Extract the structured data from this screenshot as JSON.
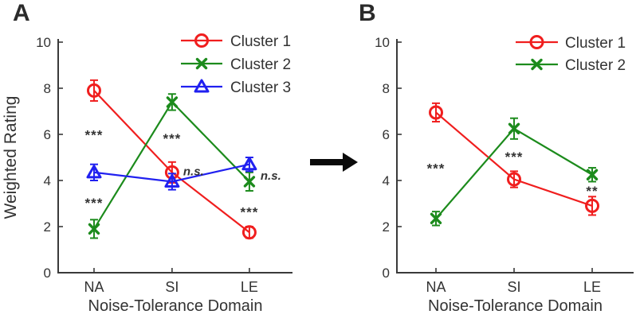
{
  "figure_labels": {
    "panel_a": "A",
    "panel_b": "B"
  },
  "colors": {
    "cluster1": "#f01e1e",
    "cluster2": "#1c8b1c",
    "cluster3": "#2020f0",
    "axis": "#3a3a3a",
    "annotation": "#404040",
    "arrow": "#0a0a0a"
  },
  "chart_data": [
    {
      "type": "line",
      "panel": "A",
      "title": "",
      "xlabel": "Noise-Tolerance Domain",
      "ylabel": "Weighted Rating",
      "categories": [
        "NA",
        "SI",
        "LE"
      ],
      "ylim": [
        0,
        10
      ],
      "yticks": [
        0,
        2,
        4,
        6,
        8,
        10
      ],
      "grid": false,
      "legend_position": "top-right",
      "series": [
        {
          "name": "Cluster 1",
          "color": "#f01e1e",
          "marker": "circle",
          "values": [
            7.9,
            4.35,
            1.75
          ],
          "errors": [
            0.45,
            0.45,
            0.25
          ]
        },
        {
          "name": "Cluster 2",
          "color": "#1c8b1c",
          "marker": "x",
          "values": [
            1.9,
            7.4,
            3.95
          ],
          "errors": [
            0.4,
            0.35,
            0.4
          ]
        },
        {
          "name": "Cluster 3",
          "color": "#2020f0",
          "marker": "triangle",
          "values": [
            4.35,
            3.95,
            4.7
          ],
          "errors": [
            0.35,
            0.35,
            0.3
          ]
        }
      ],
      "annotations": [
        {
          "text": "***",
          "cat": 0,
          "y": 6.05,
          "dx": 0,
          "style": "stars"
        },
        {
          "text": "***",
          "cat": 0,
          "y": 3.1,
          "dx": 0,
          "style": "stars"
        },
        {
          "text": "***",
          "cat": 1,
          "y": 5.9,
          "dx": 0,
          "style": "stars"
        },
        {
          "text": "n.s.",
          "cat": 1,
          "y": 4.4,
          "dx": 14,
          "style": "ns"
        },
        {
          "text": "n.s.",
          "cat": 2,
          "y": 4.2,
          "dx": 14,
          "style": "ns"
        },
        {
          "text": "***",
          "cat": 2,
          "y": 2.7,
          "dx": 0,
          "style": "stars"
        }
      ]
    },
    {
      "type": "line",
      "panel": "B",
      "title": "",
      "xlabel": "Noise-Tolerance Domain",
      "ylabel": "",
      "categories": [
        "NA",
        "SI",
        "LE"
      ],
      "ylim": [
        0,
        10
      ],
      "yticks": [
        0,
        2,
        4,
        6,
        8,
        10
      ],
      "grid": false,
      "legend_position": "top-right",
      "series": [
        {
          "name": "Cluster 1",
          "color": "#f01e1e",
          "marker": "circle",
          "values": [
            6.95,
            4.05,
            2.9
          ],
          "errors": [
            0.4,
            0.35,
            0.4
          ]
        },
        {
          "name": "Cluster 2",
          "color": "#1c8b1c",
          "marker": "x",
          "values": [
            2.35,
            6.25,
            4.25
          ],
          "errors": [
            0.3,
            0.45,
            0.3
          ]
        }
      ],
      "annotations": [
        {
          "text": "***",
          "cat": 0,
          "y": 4.6,
          "dx": 0,
          "style": "stars"
        },
        {
          "text": "***",
          "cat": 1,
          "y": 5.1,
          "dx": 0,
          "style": "stars"
        },
        {
          "text": "**",
          "cat": 2,
          "y": 3.62,
          "dx": 0,
          "style": "stars"
        }
      ]
    }
  ]
}
